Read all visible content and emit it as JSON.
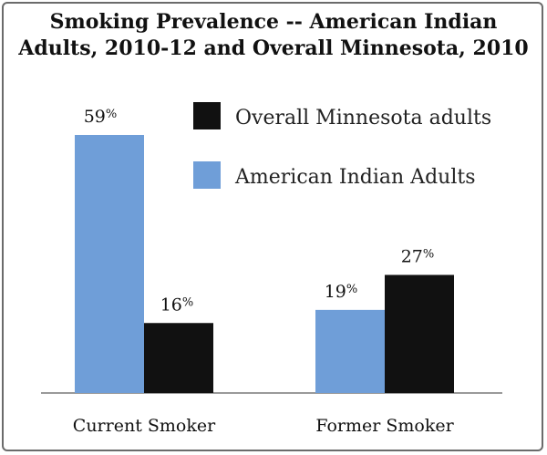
{
  "chart_data": {
    "type": "bar",
    "title_lines": [
      "Smoking Prevalence --  American Indian",
      "Adults, 2010-12 and Overall Minnesota, 2010"
    ],
    "categories": [
      "Current Smoker",
      "Former Smoker"
    ],
    "series": [
      {
        "name": "American Indian Adults",
        "color": "#6f9ed8",
        "values": [
          59,
          19
        ]
      },
      {
        "name": "Overall Minnesota adults",
        "color": "#111111",
        "values": [
          16,
          27
        ]
      }
    ],
    "value_suffix": "%",
    "legend_order": [
      "Overall Minnesota adults",
      "American Indian Adults"
    ],
    "legend_position": "top-right",
    "ylim": [
      0,
      60
    ],
    "grid": false
  }
}
